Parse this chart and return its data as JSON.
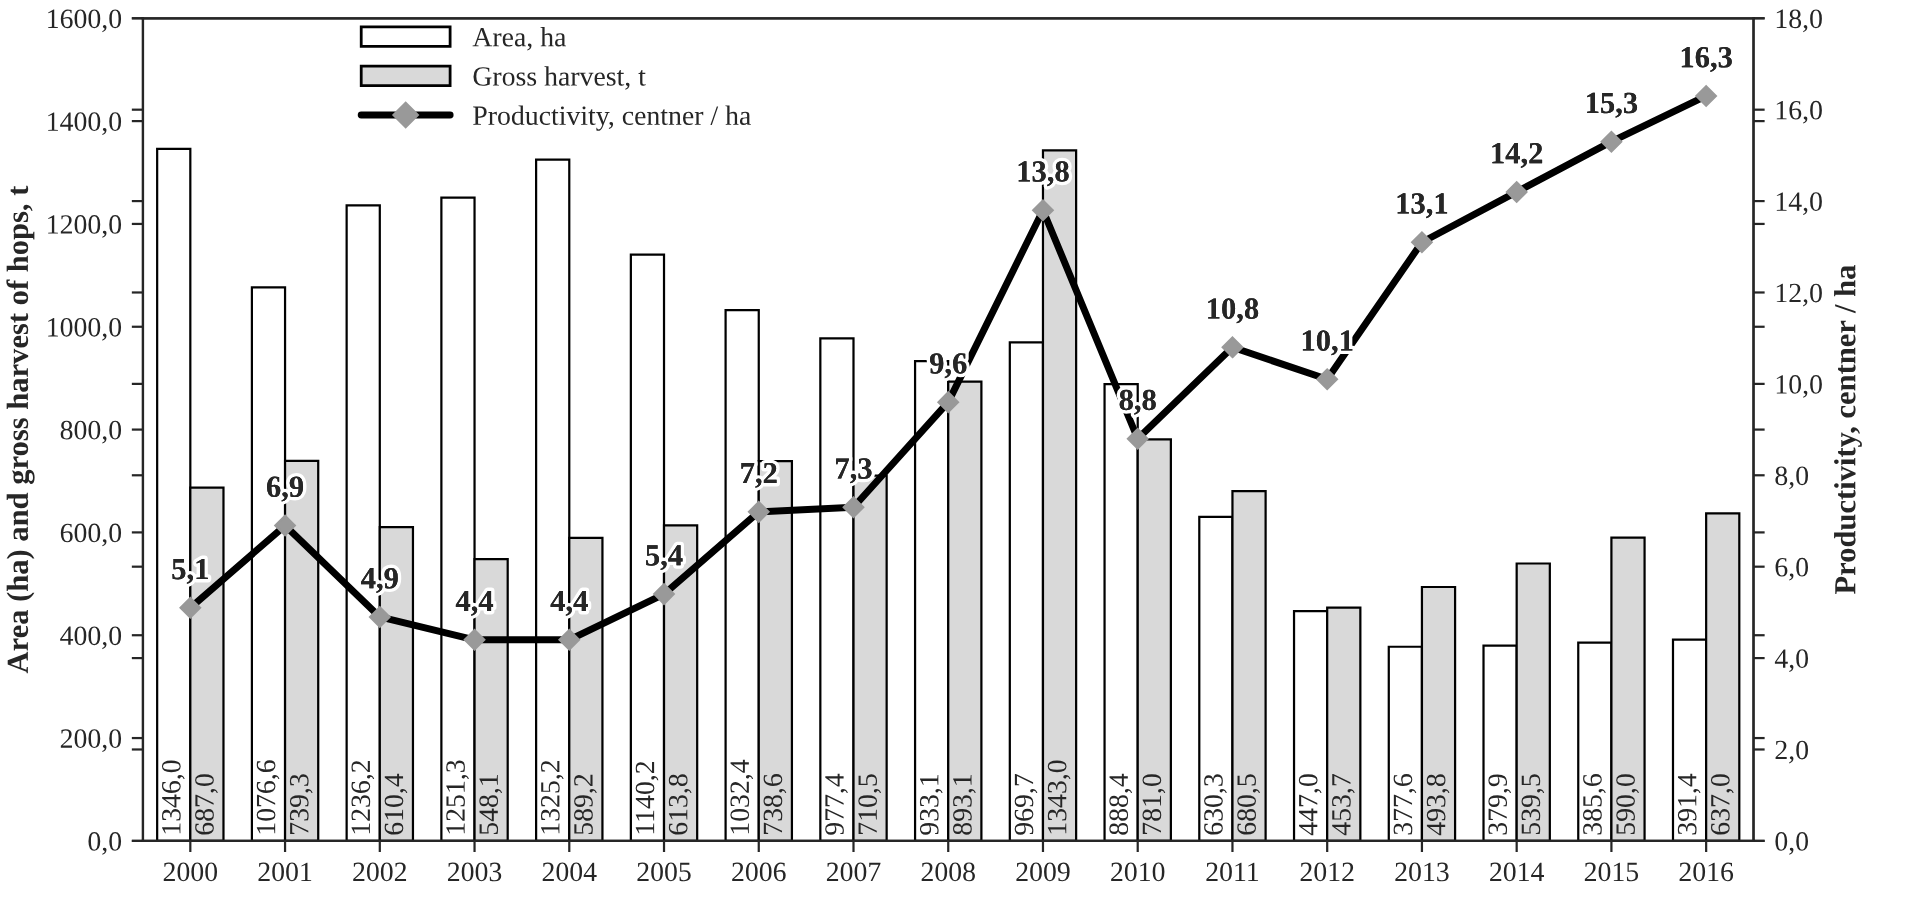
{
  "chart_data": {
    "type": "bar",
    "ylabel": "Area (ha) and gross harvest of hops, t",
    "y2label": "Productivity, centner / ha",
    "categories": [
      "2000",
      "2001",
      "2002",
      "2003",
      "2004",
      "2005",
      "2006",
      "2007",
      "2008",
      "2009",
      "2010",
      "2011",
      "2012",
      "2013",
      "2014",
      "2015",
      "2016"
    ],
    "series": [
      {
        "name": "Area, ha",
        "color": "#ffffff",
        "values": [
          1346.0,
          1076.6,
          1236.2,
          1251.3,
          1325.2,
          1140.2,
          1032.4,
          977.4,
          933.1,
          969.7,
          888.4,
          630.3,
          447.0,
          377.6,
          379.9,
          385.6,
          391.4
        ],
        "value_labels": [
          "1346,0",
          "1076,6",
          "1236,2",
          "1251,3",
          "1325,2",
          "1140,2",
          "1032,4",
          "977,4",
          "933,1",
          "969,7",
          "888,4",
          "630,3",
          "447,0",
          "377,6",
          "379,9",
          "385,6",
          "391,4"
        ]
      },
      {
        "name": "Gross harvest, t",
        "color": "#d9d9d9",
        "values": [
          687.0,
          739.3,
          610.4,
          548.1,
          589.2,
          613.8,
          738.6,
          710.5,
          893.1,
          1343.0,
          781.0,
          680.5,
          453.7,
          493.8,
          539.5,
          590.0,
          637.0
        ],
        "value_labels": [
          "687,0",
          "739,3",
          "610,4",
          "548,1",
          "589,2",
          "613,8",
          "738,6",
          "710,5",
          "893,1",
          "1343,0",
          "781,0",
          "680,5",
          "453,7",
          "493,8",
          "539,5",
          "590,0",
          "637,0"
        ]
      },
      {
        "name": "Productivity, centner / ha",
        "type": "line",
        "axis": "y2",
        "color": "#000000",
        "marker": "diamond",
        "line_style": "solid",
        "values": [
          5.1,
          6.9,
          4.9,
          4.4,
          4.4,
          5.4,
          7.2,
          7.3,
          9.6,
          13.8,
          8.8,
          10.8,
          10.1,
          13.1,
          14.2,
          15.3,
          16.3
        ],
        "value_labels": [
          "5,1",
          "6,9",
          "4,9",
          "4,4",
          "4,4",
          "5,4",
          "7,2",
          "7,3",
          "9,6",
          "13,8",
          "8,8",
          "10,8",
          "10,1",
          "13,1",
          "14,2",
          "15,3",
          "16,3"
        ]
      }
    ],
    "ylim": [
      0,
      1600
    ],
    "yticks": [
      {
        "value": 0,
        "label": "0,0"
      },
      {
        "value": 200,
        "label": "200,0"
      },
      {
        "value": 400,
        "label": "400,0"
      },
      {
        "value": 600,
        "label": "600,0"
      },
      {
        "value": 800,
        "label": "800,0"
      },
      {
        "value": 1000,
        "label": "1000,0"
      },
      {
        "value": 1200,
        "label": "1200,0"
      },
      {
        "value": 1400,
        "label": "1400,0"
      },
      {
        "value": 1600,
        "label": "1600,0"
      }
    ],
    "y2lim": [
      0,
      18
    ],
    "y2ticks": [
      {
        "value": 0,
        "label": "0,0"
      },
      {
        "value": 2,
        "label": "2,0"
      },
      {
        "value": 4,
        "label": "4,0"
      },
      {
        "value": 6,
        "label": "6,0"
      },
      {
        "value": 8,
        "label": "8,0"
      },
      {
        "value": 10,
        "label": "10,0"
      },
      {
        "value": 12,
        "label": "12,0"
      },
      {
        "value": 14,
        "label": "14,0"
      },
      {
        "value": 16,
        "label": "16,0"
      },
      {
        "value": 18,
        "label": "18,0"
      }
    ],
    "grid": false,
    "legend": "top left"
  }
}
